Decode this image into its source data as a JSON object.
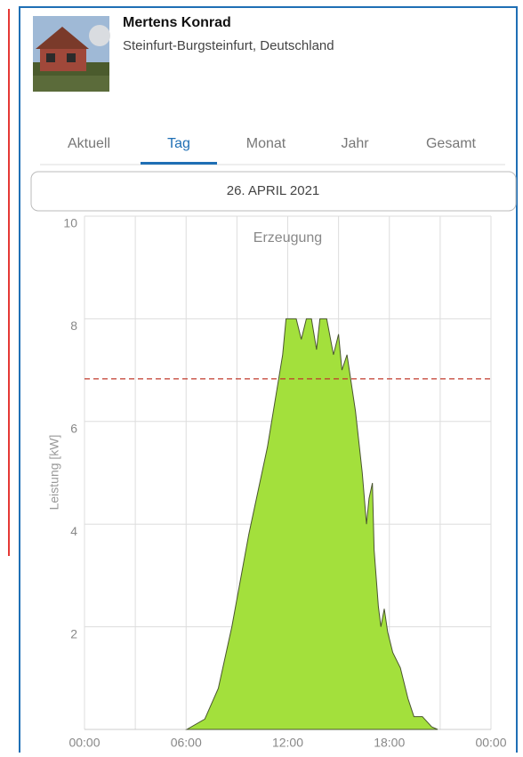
{
  "header": {
    "name": "Mertens Konrad",
    "location": "Steinfurt-Burgsteinfurt, Deutschland"
  },
  "tabs": {
    "items": [
      "Aktuell",
      "Tag",
      "Monat",
      "Jahr",
      "Gesamt"
    ],
    "active": 1
  },
  "date": "26. APRIL 2021",
  "chart_data": {
    "type": "area",
    "title": "Erzeugung",
    "ylabel": "Leistung [kW]",
    "x": [
      6.04,
      7.1,
      7.9,
      8.7,
      9.7,
      10.8,
      11.3,
      11.7,
      11.9,
      12.5,
      12.8,
      13.1,
      13.4,
      13.7,
      13.9,
      14.3,
      14.7,
      15.0,
      15.2,
      15.5,
      16.0,
      16.4,
      16.65,
      16.8,
      17.0,
      17.1,
      17.35,
      17.5,
      17.7,
      17.9,
      18.2,
      18.65,
      19.1,
      19.45,
      19.95,
      20.5,
      20.85
    ],
    "values": [
      0,
      0.2,
      0.8,
      2.0,
      3.8,
      5.5,
      6.5,
      7.3,
      8.0,
      8.0,
      7.6,
      8.0,
      8.0,
      7.4,
      8.0,
      8.0,
      7.3,
      7.7,
      7.0,
      7.3,
      6.2,
      5.0,
      4.0,
      4.5,
      4.8,
      3.5,
      2.4,
      2.0,
      2.35,
      1.9,
      1.5,
      1.2,
      0.6,
      0.25,
      0.25,
      0.05,
      0
    ],
    "color": "#a3e03c",
    "line_color": "#4a5530",
    "xlim": [
      0,
      24
    ],
    "xticks": [
      {
        "value": 0,
        "label": "00:00"
      },
      {
        "value": 6,
        "label": "06:00"
      },
      {
        "value": 12,
        "label": "12:00"
      },
      {
        "value": 18,
        "label": "18:00"
      },
      {
        "value": 24,
        "label": "00:00"
      }
    ],
    "xgrid": [
      0,
      3,
      6,
      9,
      12,
      15,
      18,
      21,
      24
    ],
    "ylim": [
      0,
      10
    ],
    "yticks": [
      2,
      4,
      6,
      8,
      10
    ],
    "limit_line": {
      "value": 6.83,
      "color": "#c0392b"
    },
    "grid": true
  }
}
